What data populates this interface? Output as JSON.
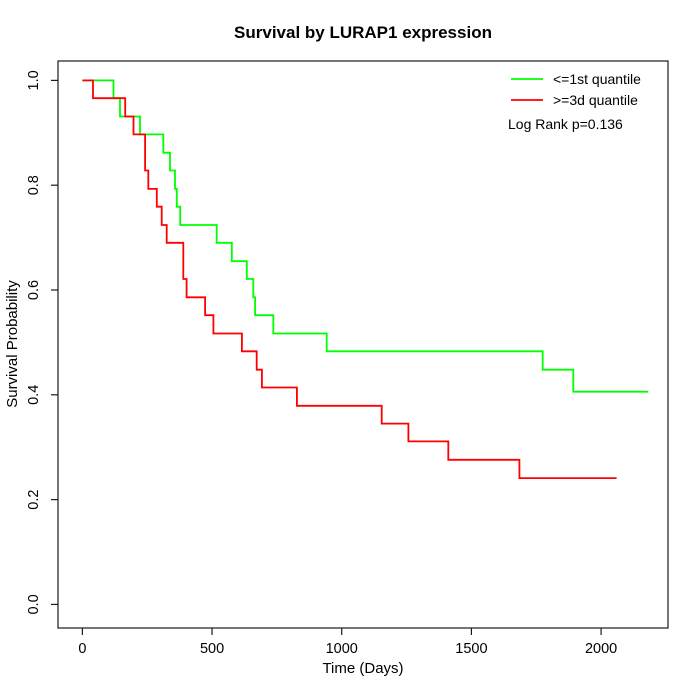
{
  "window": {
    "background": "#ffffff"
  },
  "chart_data": {
    "type": "line",
    "subtype": "kaplan_meier_step",
    "title": "Survival by LURAP1 expression",
    "xlabel": "Time (Days)",
    "ylabel": "Survival Probability",
    "grid": false,
    "axis_color": "#1a1a1a",
    "xlim": [
      -94,
      2258
    ],
    "ylim": [
      -0.045,
      1.037
    ],
    "xticks": {
      "values": [
        0,
        500,
        1000,
        1500,
        2000
      ],
      "labels": [
        "0",
        "500",
        "1000",
        "1500",
        "2000"
      ]
    },
    "yticks": {
      "values": [
        0.0,
        0.2,
        0.4,
        0.6,
        0.8,
        1.0
      ],
      "labels": [
        "0.0",
        "0.2",
        "0.4",
        "0.6",
        "0.8",
        "1.0"
      ]
    },
    "legend": {
      "position": "top-right",
      "entries": [
        {
          "label": "<=1st quantile",
          "color": "#00FF00"
        },
        {
          "label": ">=3d quantile",
          "color": "#FF0000"
        }
      ]
    },
    "annotation": "Log Rank p=0.136",
    "series": [
      {
        "name": "<=1st quantile",
        "color": "#00FF00",
        "start": [
          0,
          1.0
        ],
        "drops": [
          [
            120,
            0.966
          ],
          [
            145,
            0.931
          ],
          [
            222,
            0.897
          ],
          [
            312,
            0.862
          ],
          [
            338,
            0.828
          ],
          [
            357,
            0.793
          ],
          [
            364,
            0.759
          ],
          [
            377,
            0.724
          ],
          [
            518,
            0.69
          ],
          [
            576,
            0.655
          ],
          [
            634,
            0.621
          ],
          [
            659,
            0.586
          ],
          [
            666,
            0.552
          ],
          [
            736,
            0.517
          ],
          [
            942,
            0.483
          ],
          [
            1775,
            0.448
          ],
          [
            1893,
            0.406
          ]
        ],
        "end_time": 2182
      },
      {
        "name": ">=3d quantile",
        "color": "#FF0000",
        "start": [
          0,
          1.0
        ],
        "drops": [
          [
            41,
            0.966
          ],
          [
            165,
            0.931
          ],
          [
            197,
            0.897
          ],
          [
            242,
            0.828
          ],
          [
            254,
            0.793
          ],
          [
            287,
            0.759
          ],
          [
            306,
            0.724
          ],
          [
            325,
            0.69
          ],
          [
            389,
            0.621
          ],
          [
            402,
            0.586
          ],
          [
            473,
            0.552
          ],
          [
            505,
            0.517
          ],
          [
            615,
            0.483
          ],
          [
            672,
            0.448
          ],
          [
            692,
            0.414
          ],
          [
            827,
            0.379
          ],
          [
            1154,
            0.345
          ],
          [
            1257,
            0.311
          ],
          [
            1411,
            0.276
          ],
          [
            1685,
            0.241
          ]
        ],
        "end_time": 2060
      }
    ]
  }
}
